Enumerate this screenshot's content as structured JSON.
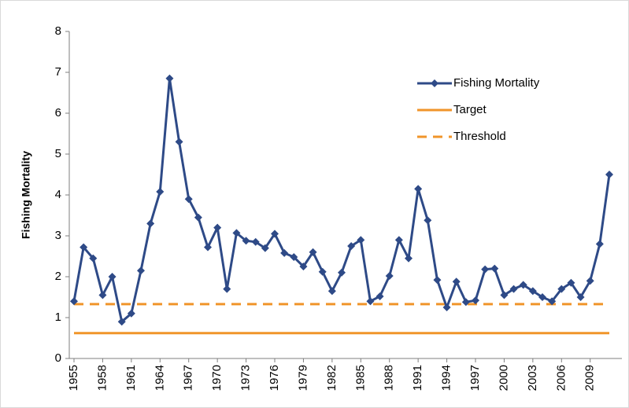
{
  "chart_data": {
    "type": "line",
    "y_label": "Fishing Mortality",
    "x": [
      1955,
      1956,
      1957,
      1958,
      1959,
      1960,
      1961,
      1962,
      1963,
      1964,
      1965,
      1966,
      1967,
      1968,
      1969,
      1970,
      1971,
      1972,
      1973,
      1974,
      1975,
      1976,
      1977,
      1978,
      1979,
      1980,
      1981,
      1982,
      1983,
      1984,
      1985,
      1986,
      1987,
      1988,
      1989,
      1990,
      1991,
      1992,
      1993,
      1994,
      1995,
      1996,
      1997,
      1998,
      1999,
      2000,
      2001,
      2002,
      2003,
      2004,
      2005,
      2006,
      2007,
      2008,
      2009,
      2010,
      2011
    ],
    "series": [
      {
        "name": "Fishing Mortality",
        "color": "#2e4a87",
        "values": [
          1.4,
          2.72,
          2.45,
          1.55,
          2.0,
          0.9,
          1.1,
          2.15,
          3.3,
          4.08,
          6.85,
          5.3,
          3.9,
          3.45,
          2.72,
          3.2,
          1.7,
          3.07,
          2.88,
          2.85,
          2.7,
          3.05,
          2.58,
          2.48,
          2.25,
          2.6,
          2.12,
          1.65,
          2.1,
          2.75,
          2.9,
          1.4,
          1.52,
          2.02,
          2.9,
          2.45,
          4.15,
          3.38,
          1.92,
          1.25,
          1.88,
          1.38,
          1.42,
          2.18,
          2.2,
          1.55,
          1.7,
          1.8,
          1.65,
          1.5,
          1.4,
          1.7,
          1.85,
          1.5,
          1.9,
          2.8,
          4.5
        ]
      }
    ],
    "reference_lines": [
      {
        "name": "Target",
        "value": 0.62,
        "color": "#f0952a",
        "dashed": false
      },
      {
        "name": "Threshold",
        "value": 1.33,
        "color": "#f0952a",
        "dashed": true
      }
    ],
    "xlim": [
      1955,
      2011
    ],
    "xticks": [
      1955,
      1958,
      1961,
      1964,
      1967,
      1970,
      1973,
      1976,
      1979,
      1982,
      1985,
      1988,
      1991,
      1994,
      1997,
      2000,
      2003,
      2006,
      2009
    ],
    "ylim": [
      0,
      8
    ],
    "yticks": [
      0,
      1,
      2,
      3,
      4,
      5,
      6,
      7,
      8
    ],
    "legend": "upper-right"
  }
}
